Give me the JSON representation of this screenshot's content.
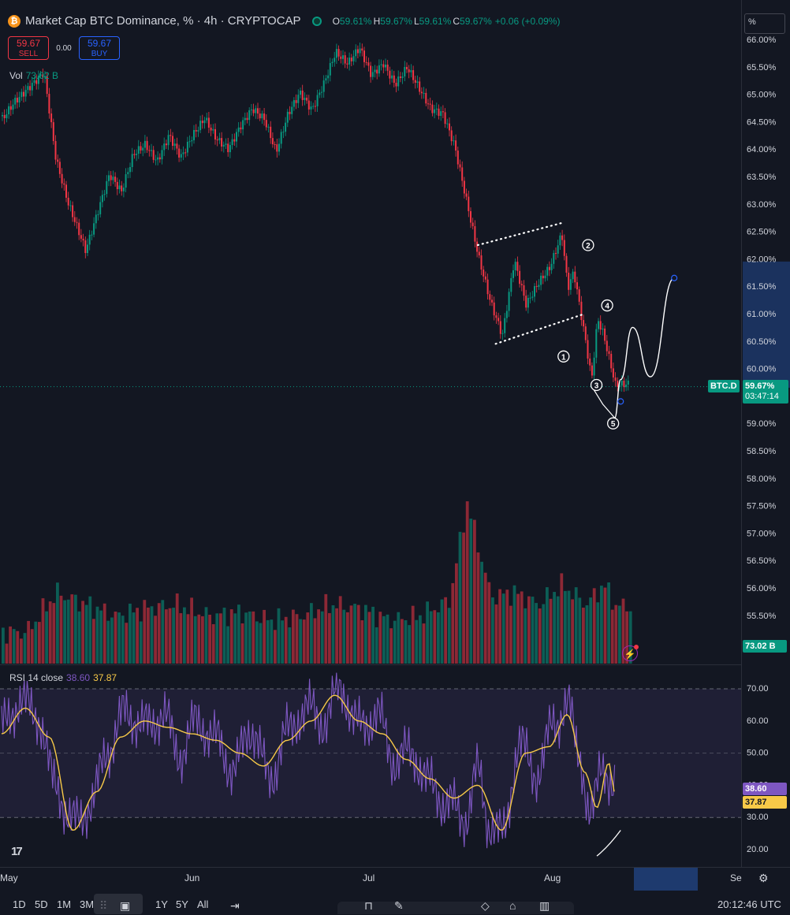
{
  "header": {
    "title": "Market Cap BTC Dominance, % · 4h · CRYPTOCAP",
    "ohlc": [
      {
        "k": "O",
        "v": "59.61%"
      },
      {
        "k": "H",
        "v": "59.67%"
      },
      {
        "k": "L",
        "v": "59.61%"
      },
      {
        "k": "C",
        "v": "59.67%"
      },
      {
        "k": "",
        "v": "+0.06 (+0.09%)"
      }
    ],
    "sell_price": "59.67",
    "sell_label": "SELL",
    "spread": "0.00",
    "buy_price": "59.67",
    "buy_label": "BUY",
    "volume_label": "Vol",
    "volume_value": "73.02 B",
    "scale_mode": "%"
  },
  "rsi_header": {
    "label": "RSI 14 close",
    "rsi_value": "38.60",
    "ma_value": "37.87"
  },
  "price_axis": {
    "ticks": [
      "66.00%",
      "65.50%",
      "65.00%",
      "64.50%",
      "64.00%",
      "63.50%",
      "63.00%",
      "62.50%",
      "62.00%",
      "61.50%",
      "61.00%",
      "60.50%",
      "60.00%",
      "59.50%",
      "59.00%",
      "58.50%",
      "58.00%",
      "57.50%",
      "57.00%",
      "56.50%",
      "56.00%",
      "55.50%",
      "55.00%"
    ]
  },
  "price_tag": {
    "symbol": "BTC.D",
    "price": "59.67%",
    "countdown": "03:47:14"
  },
  "volume_tag": "73.02 B",
  "rsi_axis": {
    "ticks": [
      "70.00",
      "60.00",
      "50.00",
      "40.00",
      "30.00",
      "20.00"
    ],
    "rsi_tag": "38.60",
    "ma_tag": "37.87"
  },
  "time_axis": [
    "May",
    "Jun",
    "Jul",
    "Aug",
    "Se"
  ],
  "timeframes": [
    "1D",
    "5D",
    "1M",
    "3M",
    "1Y",
    "5Y",
    "All"
  ],
  "clock": "20:12:46 UTC",
  "wave_labels": [
    "1",
    "2",
    "3",
    "4",
    "5"
  ],
  "colors": {
    "up": "#089981",
    "down": "#f23645",
    "rsi": "#7e57c2",
    "rsi_ma": "#f7c948",
    "background": "#131722"
  },
  "chart_data": {
    "type": "candlestick",
    "x_axis": "date",
    "y_axis": "BTC dominance %",
    "ylim": [
      55.0,
      66.0
    ],
    "series": [
      {
        "name": "BTC.D",
        "points": [
          {
            "t": "2024-05-01",
            "v": 64.6
          },
          {
            "t": "2024-05-03",
            "v": 64.9
          },
          {
            "t": "2024-05-06",
            "v": 65.2
          },
          {
            "t": "2024-05-08",
            "v": 65.4
          },
          {
            "t": "2024-05-10",
            "v": 63.8
          },
          {
            "t": "2024-05-12",
            "v": 63.0
          },
          {
            "t": "2024-05-14",
            "v": 62.4
          },
          {
            "t": "2024-05-15",
            "v": 62.1
          },
          {
            "t": "2024-05-17",
            "v": 62.8
          },
          {
            "t": "2024-05-19",
            "v": 63.5
          },
          {
            "t": "2024-05-21",
            "v": 63.2
          },
          {
            "t": "2024-05-23",
            "v": 63.9
          },
          {
            "t": "2024-05-25",
            "v": 64.1
          },
          {
            "t": "2024-05-27",
            "v": 63.8
          },
          {
            "t": "2024-05-29",
            "v": 64.3
          },
          {
            "t": "2024-05-31",
            "v": 63.9
          },
          {
            "t": "2024-06-02",
            "v": 64.3
          },
          {
            "t": "2024-06-04",
            "v": 64.6
          },
          {
            "t": "2024-06-06",
            "v": 64.2
          },
          {
            "t": "2024-06-08",
            "v": 64.0
          },
          {
            "t": "2024-06-10",
            "v": 64.4
          },
          {
            "t": "2024-06-12",
            "v": 64.7
          },
          {
            "t": "2024-06-14",
            "v": 64.5
          },
          {
            "t": "2024-06-16",
            "v": 63.9
          },
          {
            "t": "2024-06-18",
            "v": 64.6
          },
          {
            "t": "2024-06-20",
            "v": 65.0
          },
          {
            "t": "2024-06-22",
            "v": 64.7
          },
          {
            "t": "2024-06-24",
            "v": 65.2
          },
          {
            "t": "2024-06-26",
            "v": 65.8
          },
          {
            "t": "2024-06-28",
            "v": 65.6
          },
          {
            "t": "2024-06-30",
            "v": 65.9
          },
          {
            "t": "2024-07-02",
            "v": 65.4
          },
          {
            "t": "2024-07-04",
            "v": 65.6
          },
          {
            "t": "2024-07-06",
            "v": 65.2
          },
          {
            "t": "2024-07-08",
            "v": 65.5
          },
          {
            "t": "2024-07-10",
            "v": 65.1
          },
          {
            "t": "2024-07-12",
            "v": 64.7
          },
          {
            "t": "2024-07-14",
            "v": 64.6
          },
          {
            "t": "2024-07-16",
            "v": 64.0
          },
          {
            "t": "2024-07-18",
            "v": 63.0
          },
          {
            "t": "2024-07-20",
            "v": 62.0
          },
          {
            "t": "2024-07-22",
            "v": 61.2
          },
          {
            "t": "2024-07-24",
            "v": 60.6
          },
          {
            "t": "2024-07-26",
            "v": 62.0
          },
          {
            "t": "2024-07-28",
            "v": 61.2
          },
          {
            "t": "2024-07-30",
            "v": 61.6
          },
          {
            "t": "2024-08-01",
            "v": 61.9
          },
          {
            "t": "2024-08-03",
            "v": 62.5
          },
          {
            "t": "2024-08-04",
            "v": 61.5
          },
          {
            "t": "2024-08-05",
            "v": 61.8
          },
          {
            "t": "2024-08-07",
            "v": 60.5
          },
          {
            "t": "2024-08-08",
            "v": 59.8
          },
          {
            "t": "2024-08-09",
            "v": 60.9
          },
          {
            "t": "2024-08-10",
            "v": 60.6
          },
          {
            "t": "2024-08-12",
            "v": 59.67
          }
        ]
      }
    ],
    "rsi": {
      "name": "RSI 14 close",
      "ylim": [
        17,
        75
      ],
      "bands": [
        30,
        50,
        70
      ],
      "points": [
        {
          "t": "2024-05-01",
          "v": 58
        },
        {
          "t": "2024-05-04",
          "v": 66
        },
        {
          "t": "2024-05-07",
          "v": 62
        },
        {
          "t": "2024-05-10",
          "v": 40
        },
        {
          "t": "2024-05-13",
          "v": 28
        },
        {
          "t": "2024-05-16",
          "v": 34
        },
        {
          "t": "2024-05-19",
          "v": 52
        },
        {
          "t": "2024-05-22",
          "v": 63
        },
        {
          "t": "2024-05-25",
          "v": 58
        },
        {
          "t": "2024-05-28",
          "v": 62
        },
        {
          "t": "2024-05-31",
          "v": 50
        },
        {
          "t": "2024-06-03",
          "v": 60
        },
        {
          "t": "2024-06-06",
          "v": 54
        },
        {
          "t": "2024-06-09",
          "v": 45
        },
        {
          "t": "2024-06-12",
          "v": 58
        },
        {
          "t": "2024-06-15",
          "v": 42
        },
        {
          "t": "2024-06-18",
          "v": 56
        },
        {
          "t": "2024-06-21",
          "v": 64
        },
        {
          "t": "2024-06-24",
          "v": 60
        },
        {
          "t": "2024-06-27",
          "v": 70
        },
        {
          "t": "2024-06-30",
          "v": 58
        },
        {
          "t": "2024-07-03",
          "v": 62
        },
        {
          "t": "2024-07-06",
          "v": 48
        },
        {
          "t": "2024-07-09",
          "v": 50
        },
        {
          "t": "2024-07-12",
          "v": 40
        },
        {
          "t": "2024-07-15",
          "v": 34
        },
        {
          "t": "2024-07-18",
          "v": 30
        },
        {
          "t": "2024-07-20",
          "v": 44
        },
        {
          "t": "2024-07-22",
          "v": 28
        },
        {
          "t": "2024-07-24",
          "v": 24
        },
        {
          "t": "2024-07-27",
          "v": 52
        },
        {
          "t": "2024-07-30",
          "v": 44
        },
        {
          "t": "2024-08-02",
          "v": 60
        },
        {
          "t": "2024-08-04",
          "v": 65
        },
        {
          "t": "2024-08-06",
          "v": 50
        },
        {
          "t": "2024-08-08",
          "v": 30
        },
        {
          "t": "2024-08-10",
          "v": 47
        },
        {
          "t": "2024-08-12",
          "v": 38.6
        }
      ]
    },
    "rsi_ma": {
      "name": "MA",
      "points": [
        {
          "t": "2024-05-01",
          "v": 56
        },
        {
          "t": "2024-05-05",
          "v": 64
        },
        {
          "t": "2024-05-09",
          "v": 55
        },
        {
          "t": "2024-05-13",
          "v": 26
        },
        {
          "t": "2024-05-17",
          "v": 38
        },
        {
          "t": "2024-05-21",
          "v": 55
        },
        {
          "t": "2024-05-25",
          "v": 60
        },
        {
          "t": "2024-05-29",
          "v": 58
        },
        {
          "t": "2024-06-02",
          "v": 56
        },
        {
          "t": "2024-06-06",
          "v": 54
        },
        {
          "t": "2024-06-10",
          "v": 50
        },
        {
          "t": "2024-06-14",
          "v": 46
        },
        {
          "t": "2024-06-18",
          "v": 54
        },
        {
          "t": "2024-06-22",
          "v": 60
        },
        {
          "t": "2024-06-26",
          "v": 68
        },
        {
          "t": "2024-06-30",
          "v": 60
        },
        {
          "t": "2024-07-04",
          "v": 56
        },
        {
          "t": "2024-07-08",
          "v": 48
        },
        {
          "t": "2024-07-12",
          "v": 42
        },
        {
          "t": "2024-07-16",
          "v": 36
        },
        {
          "t": "2024-07-20",
          "v": 40
        },
        {
          "t": "2024-07-24",
          "v": 26
        },
        {
          "t": "2024-07-28",
          "v": 50
        },
        {
          "t": "2024-08-01",
          "v": 52
        },
        {
          "t": "2024-08-04",
          "v": 62
        },
        {
          "t": "2024-08-07",
          "v": 44
        },
        {
          "t": "2024-08-09",
          "v": 33
        },
        {
          "t": "2024-08-11",
          "v": 47
        },
        {
          "t": "2024-08-12",
          "v": 37.87
        }
      ]
    },
    "volume": {
      "name": "Vol",
      "unit": "B",
      "points": [
        {
          "t": "2024-05-05",
          "v": 40
        },
        {
          "t": "2024-05-10",
          "v": 90
        },
        {
          "t": "2024-05-15",
          "v": 75
        },
        {
          "t": "2024-05-20",
          "v": 60
        },
        {
          "t": "2024-05-25",
          "v": 70
        },
        {
          "t": "2024-05-30",
          "v": 75
        },
        {
          "t": "2024-06-05",
          "v": 60
        },
        {
          "t": "2024-06-10",
          "v": 65
        },
        {
          "t": "2024-06-15",
          "v": 55
        },
        {
          "t": "2024-06-20",
          "v": 60
        },
        {
          "t": "2024-06-25",
          "v": 75
        },
        {
          "t": "2024-06-30",
          "v": 70
        },
        {
          "t": "2024-07-05",
          "v": 55
        },
        {
          "t": "2024-07-10",
          "v": 60
        },
        {
          "t": "2024-07-15",
          "v": 80
        },
        {
          "t": "2024-07-18",
          "v": 205
        },
        {
          "t": "2024-07-22",
          "v": 85
        },
        {
          "t": "2024-07-26",
          "v": 90
        },
        {
          "t": "2024-07-30",
          "v": 75
        },
        {
          "t": "2024-08-03",
          "v": 100
        },
        {
          "t": "2024-08-07",
          "v": 75
        },
        {
          "t": "2024-08-10",
          "v": 100
        },
        {
          "t": "2024-08-12",
          "v": 73.02
        }
      ]
    },
    "projection": {
      "name": "Elliott wave projection",
      "points": [
        {
          "t": "2024-08-12",
          "v": 59.1
        },
        {
          "t": "2024-08-13",
          "v": 59.8
        },
        {
          "t": "2024-08-15",
          "v": 60.75
        },
        {
          "t": "2024-08-18",
          "v": 59.85
        },
        {
          "t": "2024-08-22",
          "v": 61.65
        }
      ]
    }
  }
}
